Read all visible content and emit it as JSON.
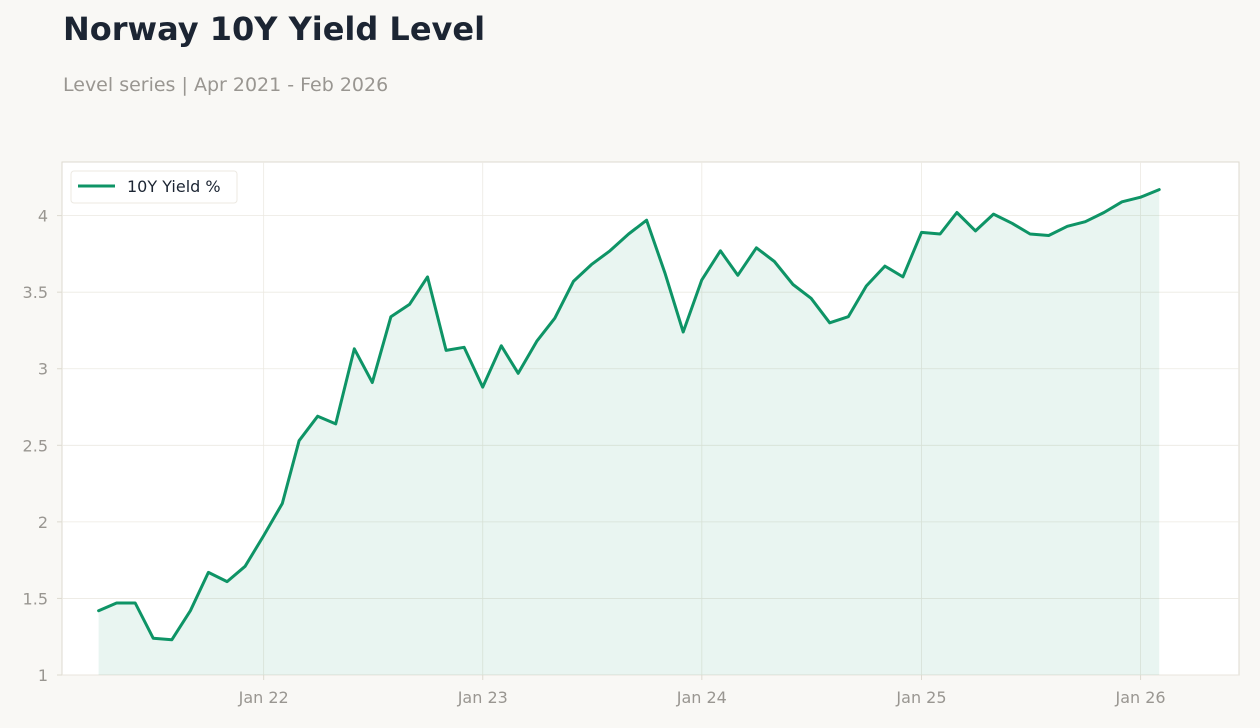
{
  "header": {
    "title": "Norway 10Y Yield Level",
    "subtitle": "Level series | Apr 2021 - Feb 2026"
  },
  "colors": {
    "line": "#0e9466",
    "fill": "#0e9466",
    "grid": "#ece9e2",
    "axis_text": "#999691",
    "frame": "#dddad0",
    "plot_bg": "#ffffff",
    "page_bg": "#f9f8f5"
  },
  "chart_data": {
    "type": "area",
    "title": "Norway 10Y Yield Level",
    "subtitle": "Level series | Apr 2021 - Feb 2026",
    "xlabel": "",
    "ylabel": "",
    "legend": {
      "position": "top-left"
    },
    "grid": true,
    "ylim": [
      1,
      4.35
    ],
    "xlim": [
      "2021-01-30",
      "2026-06-14"
    ],
    "yticks": [
      1,
      1.5,
      2,
      2.5,
      3,
      3.5,
      4
    ],
    "ytick_labels": [
      "1",
      "1.5",
      "2",
      "2.5",
      "3",
      "3.5",
      "4"
    ],
    "xticks": [
      "2022-01-01",
      "2023-01-01",
      "2024-01-01",
      "2025-01-01",
      "2026-01-01"
    ],
    "xtick_labels": [
      "Jan 22",
      "Jan 23",
      "Jan 24",
      "Jan 25",
      "Jan 26"
    ],
    "series": [
      {
        "name": "10Y Yield %",
        "x": [
          "2021-04-01",
          "2021-05-01",
          "2021-06-01",
          "2021-07-01",
          "2021-08-01",
          "2021-09-01",
          "2021-10-01",
          "2021-11-01",
          "2021-12-01",
          "2022-01-01",
          "2022-02-01",
          "2022-03-01",
          "2022-04-01",
          "2022-05-01",
          "2022-06-01",
          "2022-07-01",
          "2022-08-01",
          "2022-09-01",
          "2022-10-01",
          "2022-11-01",
          "2022-12-01",
          "2023-01-01",
          "2023-02-01",
          "2023-03-01",
          "2023-04-01",
          "2023-05-01",
          "2023-06-01",
          "2023-07-01",
          "2023-08-01",
          "2023-09-01",
          "2023-10-01",
          "2023-11-01",
          "2023-12-01",
          "2024-01-01",
          "2024-02-01",
          "2024-03-01",
          "2024-04-01",
          "2024-05-01",
          "2024-06-01",
          "2024-07-01",
          "2024-08-01",
          "2024-09-01",
          "2024-10-01",
          "2024-11-01",
          "2024-12-01",
          "2025-01-01",
          "2025-02-01",
          "2025-03-01",
          "2025-04-01",
          "2025-05-01",
          "2025-06-01",
          "2025-07-01",
          "2025-08-01",
          "2025-09-01",
          "2025-10-01",
          "2025-11-01",
          "2025-12-01",
          "2026-01-01",
          "2026-02-01"
        ],
        "values": [
          1.42,
          1.47,
          1.47,
          1.24,
          1.23,
          1.42,
          1.67,
          1.61,
          1.71,
          1.91,
          2.12,
          2.53,
          2.69,
          2.64,
          3.13,
          2.91,
          3.34,
          3.42,
          3.6,
          3.12,
          3.14,
          2.88,
          3.15,
          2.97,
          3.18,
          3.33,
          3.57,
          3.68,
          3.77,
          3.88,
          3.97,
          3.62,
          3.24,
          3.58,
          3.77,
          3.61,
          3.79,
          3.7,
          3.55,
          3.46,
          3.3,
          3.34,
          3.54,
          3.67,
          3.6,
          3.89,
          3.88,
          4.02,
          3.9,
          4.01,
          3.95,
          3.88,
          3.87,
          3.93,
          3.96,
          4.02,
          4.09,
          4.12,
          4.17
        ]
      }
    ]
  }
}
